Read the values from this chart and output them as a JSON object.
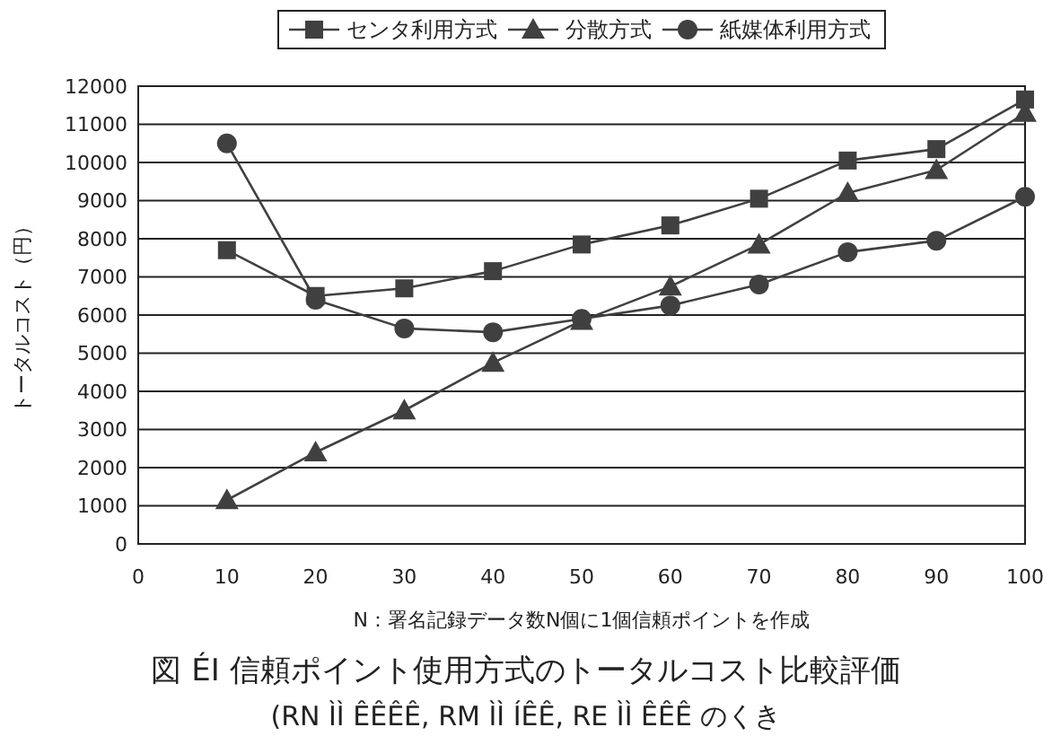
{
  "chart_data": {
    "type": "line",
    "xlabel": "N：署名記録データ数N個に1個信頼ポイントを作成",
    "ylabel": "トータルコスト（円）",
    "x": [
      10,
      20,
      30,
      40,
      50,
      60,
      70,
      80,
      90,
      100
    ],
    "series": [
      {
        "name": "センタ利用方式",
        "color": "#404040",
        "marker": "square",
        "values": [
          7700,
          6500,
          6700,
          7150,
          7850,
          8350,
          9050,
          10050,
          10350,
          11650
        ]
      },
      {
        "name": "分散方式",
        "color": "#404040",
        "marker": "triangle",
        "values": [
          1150,
          2400,
          3500,
          4750,
          5850,
          6750,
          7850,
          9200,
          9800,
          11300
        ]
      },
      {
        "name": "紙媒体利用方式",
        "color": "#404040",
        "marker": "circle",
        "values": [
          10500,
          6400,
          5650,
          5550,
          5900,
          6250,
          6800,
          7650,
          7950,
          9100
        ]
      }
    ],
    "xlim": [
      0,
      100
    ],
    "xticks": [
      0,
      10,
      20,
      30,
      40,
      50,
      60,
      70,
      80,
      90,
      100
    ],
    "ylim": [
      0,
      12000
    ],
    "yticks": [
      0,
      1000,
      2000,
      3000,
      4000,
      5000,
      6000,
      7000,
      8000,
      9000,
      10000,
      11000,
      12000
    ],
    "grid": "y",
    "legend": "top",
    "line_style": "solid",
    "annotations": [
      "図 ÉI 信頼ポイント使用方式のトータルコスト比較評価",
      "(RN ÌÌ ÊÊÊÊ, RM ÌÌ ÍÊÊ, RE ÌÌ ÊÊÊ のくき"
    ]
  }
}
